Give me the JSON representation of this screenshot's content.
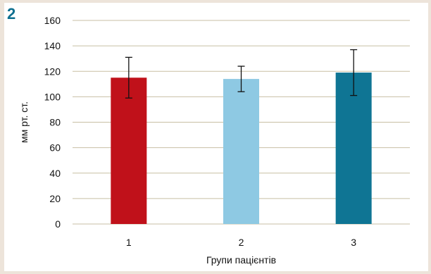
{
  "figure": {
    "panel_number": "2"
  },
  "chart_data": {
    "type": "bar",
    "categories": [
      "1",
      "2",
      "3"
    ],
    "values": [
      115,
      114,
      119
    ],
    "error": [
      16,
      10,
      18
    ],
    "colors": [
      "#c0111a",
      "#8ec9e3",
      "#0f7594"
    ],
    "xlabel": "Групи пацієнтів",
    "ylabel": "мм рт. ст.",
    "ylim": [
      0,
      160
    ],
    "yticks": [
      0,
      20,
      40,
      60,
      80,
      100,
      120,
      140,
      160
    ],
    "grid": true,
    "gridline_color": "#c8bfa4"
  }
}
